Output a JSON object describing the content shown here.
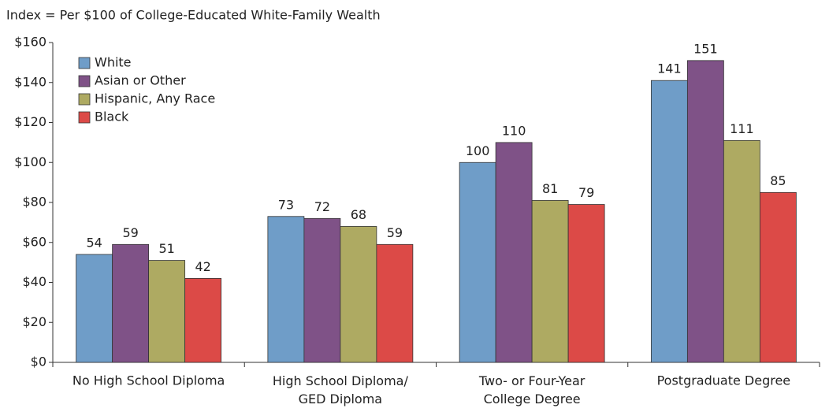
{
  "chart_data": {
    "type": "bar",
    "subtitle": "Index = Per $100 of College-Educated White-Family Wealth",
    "categories": [
      "No High School Diploma",
      "High School Diploma/\nGED Diploma",
      "Two- or Four-Year\nCollege Degree",
      "Postgraduate Degree"
    ],
    "series": [
      {
        "name": "White",
        "color": "#6f9dc8",
        "values": [
          54,
          73,
          100,
          141
        ]
      },
      {
        "name": "Asian or Other",
        "color": "#7f5287",
        "values": [
          59,
          72,
          110,
          151
        ]
      },
      {
        "name": "Hispanic, Any Race",
        "color": "#aeaa62",
        "values": [
          51,
          68,
          81,
          111
        ]
      },
      {
        "name": "Black",
        "color": "#dc4a47",
        "values": [
          42,
          59,
          79,
          85
        ]
      }
    ],
    "ylim": [
      0,
      160
    ],
    "yticks": [
      {
        "value": 0,
        "label": "$0"
      },
      {
        "value": 20,
        "label": "$20"
      },
      {
        "value": 40,
        "label": "$40"
      },
      {
        "value": 60,
        "label": "$60"
      },
      {
        "value": 80,
        "label": "$80"
      },
      {
        "value": 100,
        "label": "$100"
      },
      {
        "value": 120,
        "label": "$120"
      },
      {
        "value": 140,
        "label": "$140"
      },
      {
        "value": 160,
        "label": "$160"
      }
    ],
    "grid": false,
    "legend": "upper left"
  }
}
